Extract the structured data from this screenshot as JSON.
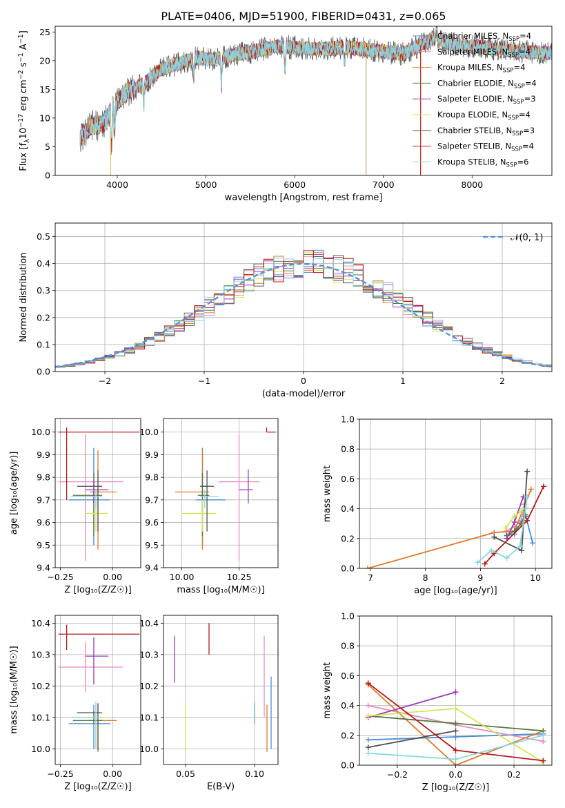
{
  "figure_title": "PLATE=0406, MJD=51900, FIBERID=0431, z=0.065",
  "legend_entries": [
    {
      "label": "Chabrier MILES, N",
      "sub": "SSP",
      "suffix": "=4",
      "color": "#4b8bd6"
    },
    {
      "label": "Salpeter MILES, N",
      "sub": "SSP",
      "suffix": "=4",
      "color": "#e48bc3"
    },
    {
      "label": "Kroupa MILES, N",
      "sub": "SSP",
      "suffix": "=4",
      "color": "#dd7a2c"
    },
    {
      "label": "Chabrier ELODIE, N",
      "sub": "SSP",
      "suffix": "=4",
      "color": "#56763e"
    },
    {
      "label": "Salpeter ELODIE, N",
      "sub": "SSP",
      "suffix": "=3",
      "color": "#9a3ab2"
    },
    {
      "label": "Kroupa ELODIE, N",
      "sub": "SSP",
      "suffix": "=4",
      "color": "#d3e35a"
    },
    {
      "label": "Chabrier STELIB, N",
      "sub": "SSP",
      "suffix": "=3",
      "color": "#505050"
    },
    {
      "label": "Salpeter STELIB, N",
      "sub": "SSP",
      "suffix": "=4",
      "color": "#b51818"
    },
    {
      "label": "Kroupa STELIB, N",
      "sub": "SSP",
      "suffix": "=6",
      "color": "#8ad6e0"
    }
  ],
  "chart_data": [
    {
      "id": "spectrum",
      "type": "line",
      "xlabel": "wavelength [Angstrom, rest frame]",
      "ylabel": "Flux [f",
      "ylabel_sub": "λ",
      "ylabel_rest": "10",
      "ylabel_exp": "−17",
      "ylabel_units": " erg cm",
      "ylabel_units_exp": "−2",
      "ylabel_units2": " s",
      "ylabel_units_exp2": "−1",
      "ylabel_units3": " A",
      "ylabel_units_exp3": "−1",
      "ylabel_close": "]",
      "xlim": [
        3300,
        8900
      ],
      "ylim": [
        0,
        26
      ],
      "xticks": [
        "4000",
        "5000",
        "6000",
        "7000",
        "8000"
      ],
      "yticks": [
        "0",
        "5",
        "10",
        "15",
        "20",
        "25"
      ],
      "spectrum_shape": [
        [
          3580,
          6.5
        ],
        [
          3700,
          8.5
        ],
        [
          3850,
          9
        ],
        [
          3950,
          12
        ],
        [
          4100,
          14.5
        ],
        [
          4300,
          16
        ],
        [
          4500,
          18.5
        ],
        [
          4700,
          19.5
        ],
        [
          4900,
          20.5
        ],
        [
          5100,
          20.2
        ],
        [
          5300,
          21
        ],
        [
          5500,
          21.5
        ],
        [
          5800,
          22.5
        ],
        [
          6000,
          22.3
        ],
        [
          6300,
          22
        ],
        [
          6600,
          22.3
        ],
        [
          6900,
          21.8
        ],
        [
          7200,
          21.2
        ],
        [
          7400,
          22.5
        ],
        [
          7550,
          23.8
        ],
        [
          7700,
          23.2
        ],
        [
          7900,
          22.5
        ],
        [
          8100,
          22.5
        ],
        [
          8300,
          21.8
        ],
        [
          8500,
          21.7
        ],
        [
          8650,
          21.5
        ],
        [
          8900,
          21.3
        ]
      ]
    },
    {
      "id": "residuals",
      "type": "histogram",
      "xlabel": "(data-model)/error",
      "ylabel": "Normed distribution",
      "xlim": [
        -2.5,
        2.5
      ],
      "ylim": [
        0,
        0.55
      ],
      "xticks": [
        "−2",
        "−1",
        "0",
        "1",
        "2"
      ],
      "yticks": [
        "0.0",
        "0.1",
        "0.2",
        "0.3",
        "0.4",
        "0.5"
      ],
      "bin_width": 0.1,
      "reference_curve": {
        "label": "𝒩(0, 1)",
        "mean": 0,
        "sigma": 1,
        "color": "#5a8fd6"
      }
    },
    {
      "id": "age_vs_Z",
      "type": "errorbar",
      "xlabel": "Z [log₁₀(Z/Z☉)]",
      "ylabel": "age  [log₁₀(age/yr)]",
      "xlim": [
        -0.275,
        0.135
      ],
      "ylim": [
        9.4,
        10.06
      ],
      "xticks": [
        "−0.25",
        "0.00"
      ],
      "xtick_values": [
        -0.25,
        0.0
      ],
      "yticks": [
        "9.4",
        "9.5",
        "9.6",
        "9.7",
        "9.8",
        "9.9",
        "10.0"
      ],
      "ytick_values": [
        9.4,
        9.5,
        9.6,
        9.7,
        9.8,
        9.9,
        10.0
      ],
      "points": [
        {
          "x": -0.09,
          "xerr": [
            0.12,
            0.08
          ],
          "y": 9.7,
          "yerr": [
            0.2,
            0.23
          ]
        },
        {
          "x": -0.13,
          "xerr": [
            0.13,
            0.18
          ],
          "y": 9.78,
          "yerr": [
            0.35,
            0.21
          ]
        },
        {
          "x": -0.07,
          "xerr": [
            0.04,
            0.09
          ],
          "y": 9.735,
          "yerr": [
            0.255,
            0.185
          ]
        },
        {
          "x": -0.09,
          "xerr": [
            0.1,
            0.04
          ],
          "y": 9.72,
          "yerr": [
            0.18,
            0.1
          ]
        },
        {
          "x": -0.09,
          "xerr": [
            0.04,
            0.07
          ],
          "y": 9.745,
          "yerr": [
            0.06,
            0.04
          ]
        },
        {
          "x": -0.08,
          "xerr": [
            0.05,
            0.06
          ],
          "y": 9.64,
          "yerr": [
            0.08,
            0.07
          ]
        },
        {
          "x": -0.07,
          "xerr": [
            0.1,
            0.02
          ],
          "y": 9.76,
          "yerr": [
            0.2,
            0.07
          ]
        },
        {
          "x": -0.22,
          "xerr": [
            0.04,
            0.35
          ],
          "y": 10.0,
          "yerr": [
            0.3,
            0.02
          ]
        },
        {
          "x": -0.08,
          "xerr": [
            0.12,
            0.03
          ],
          "y": 9.715,
          "yerr": [
            0.05,
            0.03
          ]
        }
      ]
    },
    {
      "id": "age_vs_mass",
      "type": "errorbar",
      "xlabel": "mass [log₁₀(M/M☉)]",
      "xlim": [
        9.92,
        10.42
      ],
      "ylim": [
        9.4,
        10.06
      ],
      "xticks": [
        "10.00",
        "10.25"
      ],
      "xtick_values": [
        10.0,
        10.25
      ],
      "yticks": [
        "9.4",
        "9.5",
        "9.6",
        "9.7",
        "9.8",
        "9.9",
        "10.0"
      ],
      "ytick_values": [
        9.4,
        9.5,
        9.6,
        9.7,
        9.8,
        9.9,
        10.0
      ],
      "points": [
        {
          "x": 10.09,
          "xerr": [
            0.03,
            0.1
          ],
          "y": 9.7,
          "yerr": [
            0.2,
            0.23
          ]
        },
        {
          "x": 10.25,
          "xerr": [
            0.09,
            0.09
          ],
          "y": 9.78,
          "yerr": [
            0.35,
            0.21
          ]
        },
        {
          "x": 10.09,
          "xerr": [
            0.12,
            0.03
          ],
          "y": 9.735,
          "yerr": [
            0.255,
            0.185
          ]
        },
        {
          "x": 10.09,
          "xerr": [
            0.02,
            0.03
          ],
          "y": 9.72,
          "yerr": [
            0.18,
            0.1
          ]
        },
        {
          "x": 10.29,
          "xerr": [
            0.04,
            0.02
          ],
          "y": 9.745,
          "yerr": [
            0.06,
            0.09
          ]
        },
        {
          "x": 10.09,
          "xerr": [
            0.09,
            0.06
          ],
          "y": 9.64,
          "yerr": [
            0.08,
            0.06
          ]
        },
        {
          "x": 10.11,
          "xerr": [
            0.03,
            0.03
          ],
          "y": 9.76,
          "yerr": [
            0.2,
            0.07
          ]
        },
        {
          "x": 10.37,
          "xerr": [
            0.0,
            0.04
          ],
          "y": 10.0,
          "yerr": [
            0.0,
            0.02
          ]
        },
        {
          "x": 10.1,
          "xerr": [
            0.02,
            0.06
          ],
          "y": 9.715,
          "yerr": [
            0.05,
            0.03
          ]
        }
      ]
    },
    {
      "id": "weight_vs_age",
      "type": "line",
      "xlabel": "age  [log₁₀(age/yr)]",
      "ylabel": "mass weight",
      "xlim": [
        6.8,
        10.3
      ],
      "ylim": [
        0,
        1
      ],
      "xticks": [
        "7",
        "8",
        "9",
        "10"
      ],
      "xtick_values": [
        7,
        8,
        9,
        10
      ],
      "yticks": [
        "0.0",
        "0.2",
        "0.4",
        "0.6",
        "0.8",
        "1.0"
      ],
      "ytick_values": [
        0,
        0.2,
        0.4,
        0.6,
        0.8,
        1.0
      ],
      "series": [
        {
          "x": [
            9.48,
            9.62,
            9.82,
            9.95
          ],
          "y": [
            0.22,
            0.23,
            0.36,
            0.17
          ]
        },
        {
          "x": [
            9.47,
            9.62,
            9.74,
            9.8
          ],
          "y": [
            0.25,
            0.28,
            0.32,
            0.43
          ]
        },
        {
          "x": [
            6.95,
            9.25,
            9.62,
            9.92
          ],
          "y": [
            0.0,
            0.24,
            0.25,
            0.53
          ]
        },
        {
          "x": [
            9.48,
            9.62,
            9.74,
            9.82
          ],
          "y": [
            0.22,
            0.25,
            0.3,
            0.35
          ]
        },
        {
          "x": [
            9.48,
            9.62,
            9.78
          ],
          "y": [
            0.2,
            0.31,
            0.48
          ]
        },
        {
          "x": [
            9.46,
            9.62,
            9.74,
            9.82
          ],
          "y": [
            0.27,
            0.35,
            0.38,
            0.41
          ]
        },
        {
          "x": [
            9.25,
            9.75,
            9.85
          ],
          "y": [
            0.21,
            0.12,
            0.65
          ]
        },
        {
          "x": [
            9.08,
            9.25,
            9.85,
            10.15
          ],
          "y": [
            0.03,
            0.1,
            0.32,
            0.55
          ]
        },
        {
          "x": [
            8.95,
            9.2,
            9.48,
            9.72,
            9.82,
            9.85
          ],
          "y": [
            0.04,
            0.12,
            0.07,
            0.15,
            0.4,
            0.48
          ]
        }
      ]
    },
    {
      "id": "mass_vs_Z",
      "type": "errorbar",
      "xlabel": "Z [log₁₀(Z/Z☉)]",
      "ylabel": "mass [log₁₀(M/M☉)]",
      "xlim": [
        -0.275,
        0.135
      ],
      "ylim": [
        9.95,
        10.425
      ],
      "xticks": [
        "−0.25",
        "0.00"
      ],
      "xtick_values": [
        -0.25,
        0.0
      ],
      "yticks": [
        "10.0",
        "10.1",
        "10.2",
        "10.3",
        "10.4"
      ],
      "ytick_values": [
        10.0,
        10.1,
        10.2,
        10.3,
        10.4
      ],
      "points": [
        {
          "x": -0.09,
          "xerr": [
            0.12,
            0.08
          ],
          "y": 10.08,
          "yerr": [
            0.08,
            0.06
          ]
        },
        {
          "x": -0.13,
          "xerr": [
            0.13,
            0.18
          ],
          "y": 10.26,
          "yerr": [
            0.08,
            0.08
          ]
        },
        {
          "x": -0.07,
          "xerr": [
            0.04,
            0.09
          ],
          "y": 10.09,
          "yerr": [
            0.1,
            0.05
          ]
        },
        {
          "x": -0.09,
          "xerr": [
            0.1,
            0.04
          ],
          "y": 10.09,
          "yerr": [
            0.01,
            0.03
          ]
        },
        {
          "x": -0.09,
          "xerr": [
            0.04,
            0.07
          ],
          "y": 10.295,
          "yerr": [
            0.09,
            0.06
          ]
        },
        {
          "x": -0.08,
          "xerr": [
            0.05,
            0.06
          ],
          "y": 10.1,
          "yerr": [
            0.1,
            0.05
          ]
        },
        {
          "x": -0.07,
          "xerr": [
            0.1,
            0.02
          ],
          "y": 10.115,
          "yerr": [
            0.12,
            0.03
          ]
        },
        {
          "x": -0.22,
          "xerr": [
            0.04,
            0.35
          ],
          "y": 10.365,
          "yerr": [
            0.05,
            0.03
          ]
        },
        {
          "x": -0.08,
          "xerr": [
            0.12,
            0.03
          ],
          "y": 10.1,
          "yerr": [
            0.1,
            0.05
          ]
        }
      ]
    },
    {
      "id": "mass_vs_EBV",
      "type": "errorbar",
      "xlabel": "E(B-V)",
      "xlim": [
        0.034,
        0.117
      ],
      "ylim": [
        9.95,
        10.425
      ],
      "xticks": [
        "0.05",
        "0.10"
      ],
      "xtick_values": [
        0.05,
        0.1
      ],
      "yticks": [
        "10.0",
        "10.1",
        "10.2",
        "10.3",
        "10.4"
      ],
      "ytick_values": [
        10.0,
        10.1,
        10.2,
        10.3,
        10.4
      ],
      "points": [
        {
          "x": 0.112,
          "xerr": [
            0,
            0
          ],
          "y": 10.15,
          "yerr": [
            0.15,
            0.08
          ]
        },
        {
          "x": 0.107,
          "xerr": [
            0,
            0
          ],
          "y": 10.23,
          "yerr": [
            0.13,
            0.13
          ]
        },
        {
          "x": 0.109,
          "xerr": [
            0,
            0
          ],
          "y": 10.09,
          "yerr": [
            0.1,
            0.05
          ]
        },
        {
          "x": 0.1,
          "xerr": [
            0,
            0
          ],
          "y": 10.1,
          "yerr": [
            0.02,
            0.05
          ]
        },
        {
          "x": 0.042,
          "xerr": [
            0,
            0
          ],
          "y": 10.29,
          "yerr": [
            0.08,
            0.07
          ]
        },
        {
          "x": 0.05,
          "xerr": [
            0,
            0
          ],
          "y": 10.1,
          "yerr": [
            0.1,
            0.05
          ]
        },
        {
          "x": 0.1,
          "xerr": [
            0,
            0
          ],
          "y": 10.1,
          "yerr": [
            0.02,
            0.04
          ]
        },
        {
          "x": 0.067,
          "xerr": [
            0,
            0
          ],
          "y": 10.35,
          "yerr": [
            0.05,
            0.05
          ]
        },
        {
          "x": 0.1,
          "xerr": [
            0,
            0
          ],
          "y": 10.11,
          "yerr": [
            0.03,
            0.04
          ]
        }
      ]
    },
    {
      "id": "weight_vs_Z",
      "type": "line",
      "xlabel": "Z [log₁₀(Z/Z☉)]",
      "ylabel": "mass weight",
      "xlim": [
        -0.33,
        0.33
      ],
      "ylim": [
        0,
        1
      ],
      "xticks": [
        "−0.2",
        "0.0",
        "0.2"
      ],
      "xtick_values": [
        -0.2,
        0.0,
        0.2
      ],
      "yticks": [
        "0.0",
        "0.2",
        "0.4",
        "0.6",
        "0.8",
        "1.0"
      ],
      "ytick_values": [
        0,
        0.2,
        0.4,
        0.6,
        0.8,
        1.0
      ],
      "series": [
        {
          "x": [
            -0.3,
            0.0,
            0.3
          ],
          "y": [
            0.17,
            0.19,
            0.21
          ]
        },
        {
          "x": [
            -0.3,
            0.0,
            0.3
          ],
          "y": [
            0.4,
            0.27,
            0.16
          ]
        },
        {
          "x": [
            -0.3,
            0.0,
            0.3
          ],
          "y": [
            0.54,
            0.0,
            0.23
          ]
        },
        {
          "x": [
            -0.3,
            0.0,
            0.3
          ],
          "y": [
            0.33,
            0.28,
            0.23
          ]
        },
        {
          "x": [
            -0.3,
            0.0
          ],
          "y": [
            0.32,
            0.49
          ]
        },
        {
          "x": [
            -0.3,
            0.0,
            0.3
          ],
          "y": [
            0.33,
            0.38,
            0.02
          ]
        },
        {
          "x": [
            -0.3,
            0.0
          ],
          "y": [
            0.12,
            0.23
          ]
        },
        {
          "x": [
            -0.3,
            0.0,
            0.3
          ],
          "y": [
            0.55,
            0.1,
            0.03
          ]
        },
        {
          "x": [
            -0.3,
            0.0,
            0.3
          ],
          "y": [
            0.08,
            0.04,
            0.2
          ]
        }
      ]
    }
  ]
}
